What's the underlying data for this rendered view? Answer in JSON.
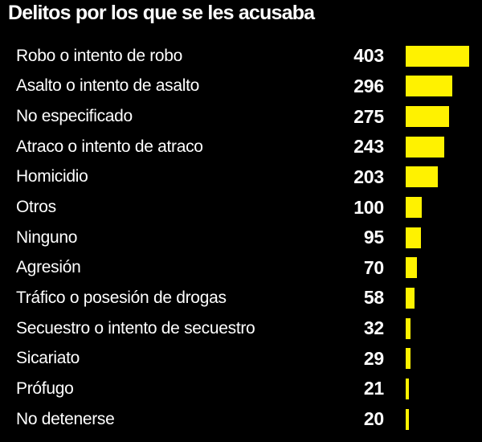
{
  "chart_data": {
    "type": "bar",
    "orientation": "horizontal",
    "title": "Delitos por los que se les acusaba",
    "xlabel": "",
    "ylabel": "",
    "categories": [
      "Robo o intento de robo",
      "Asalto o intento de asalto",
      "No especificado",
      "Atraco o intento de atraco",
      "Homicidio",
      "Otros",
      "Ninguno",
      "Agresión",
      "Tráfico o posesión de drogas",
      "Secuestro o intento de secuestro",
      "Sicariato",
      "Prófugo",
      "No detenerse"
    ],
    "values": [
      403,
      296,
      275,
      243,
      203,
      100,
      95,
      70,
      58,
      32,
      29,
      21,
      20
    ],
    "max_value": 403,
    "value_labels_shown": true,
    "grid": false,
    "legend": "none",
    "colors": {
      "bar": "#FFF200",
      "background": "#000000",
      "text": "#FFFFFF"
    }
  }
}
